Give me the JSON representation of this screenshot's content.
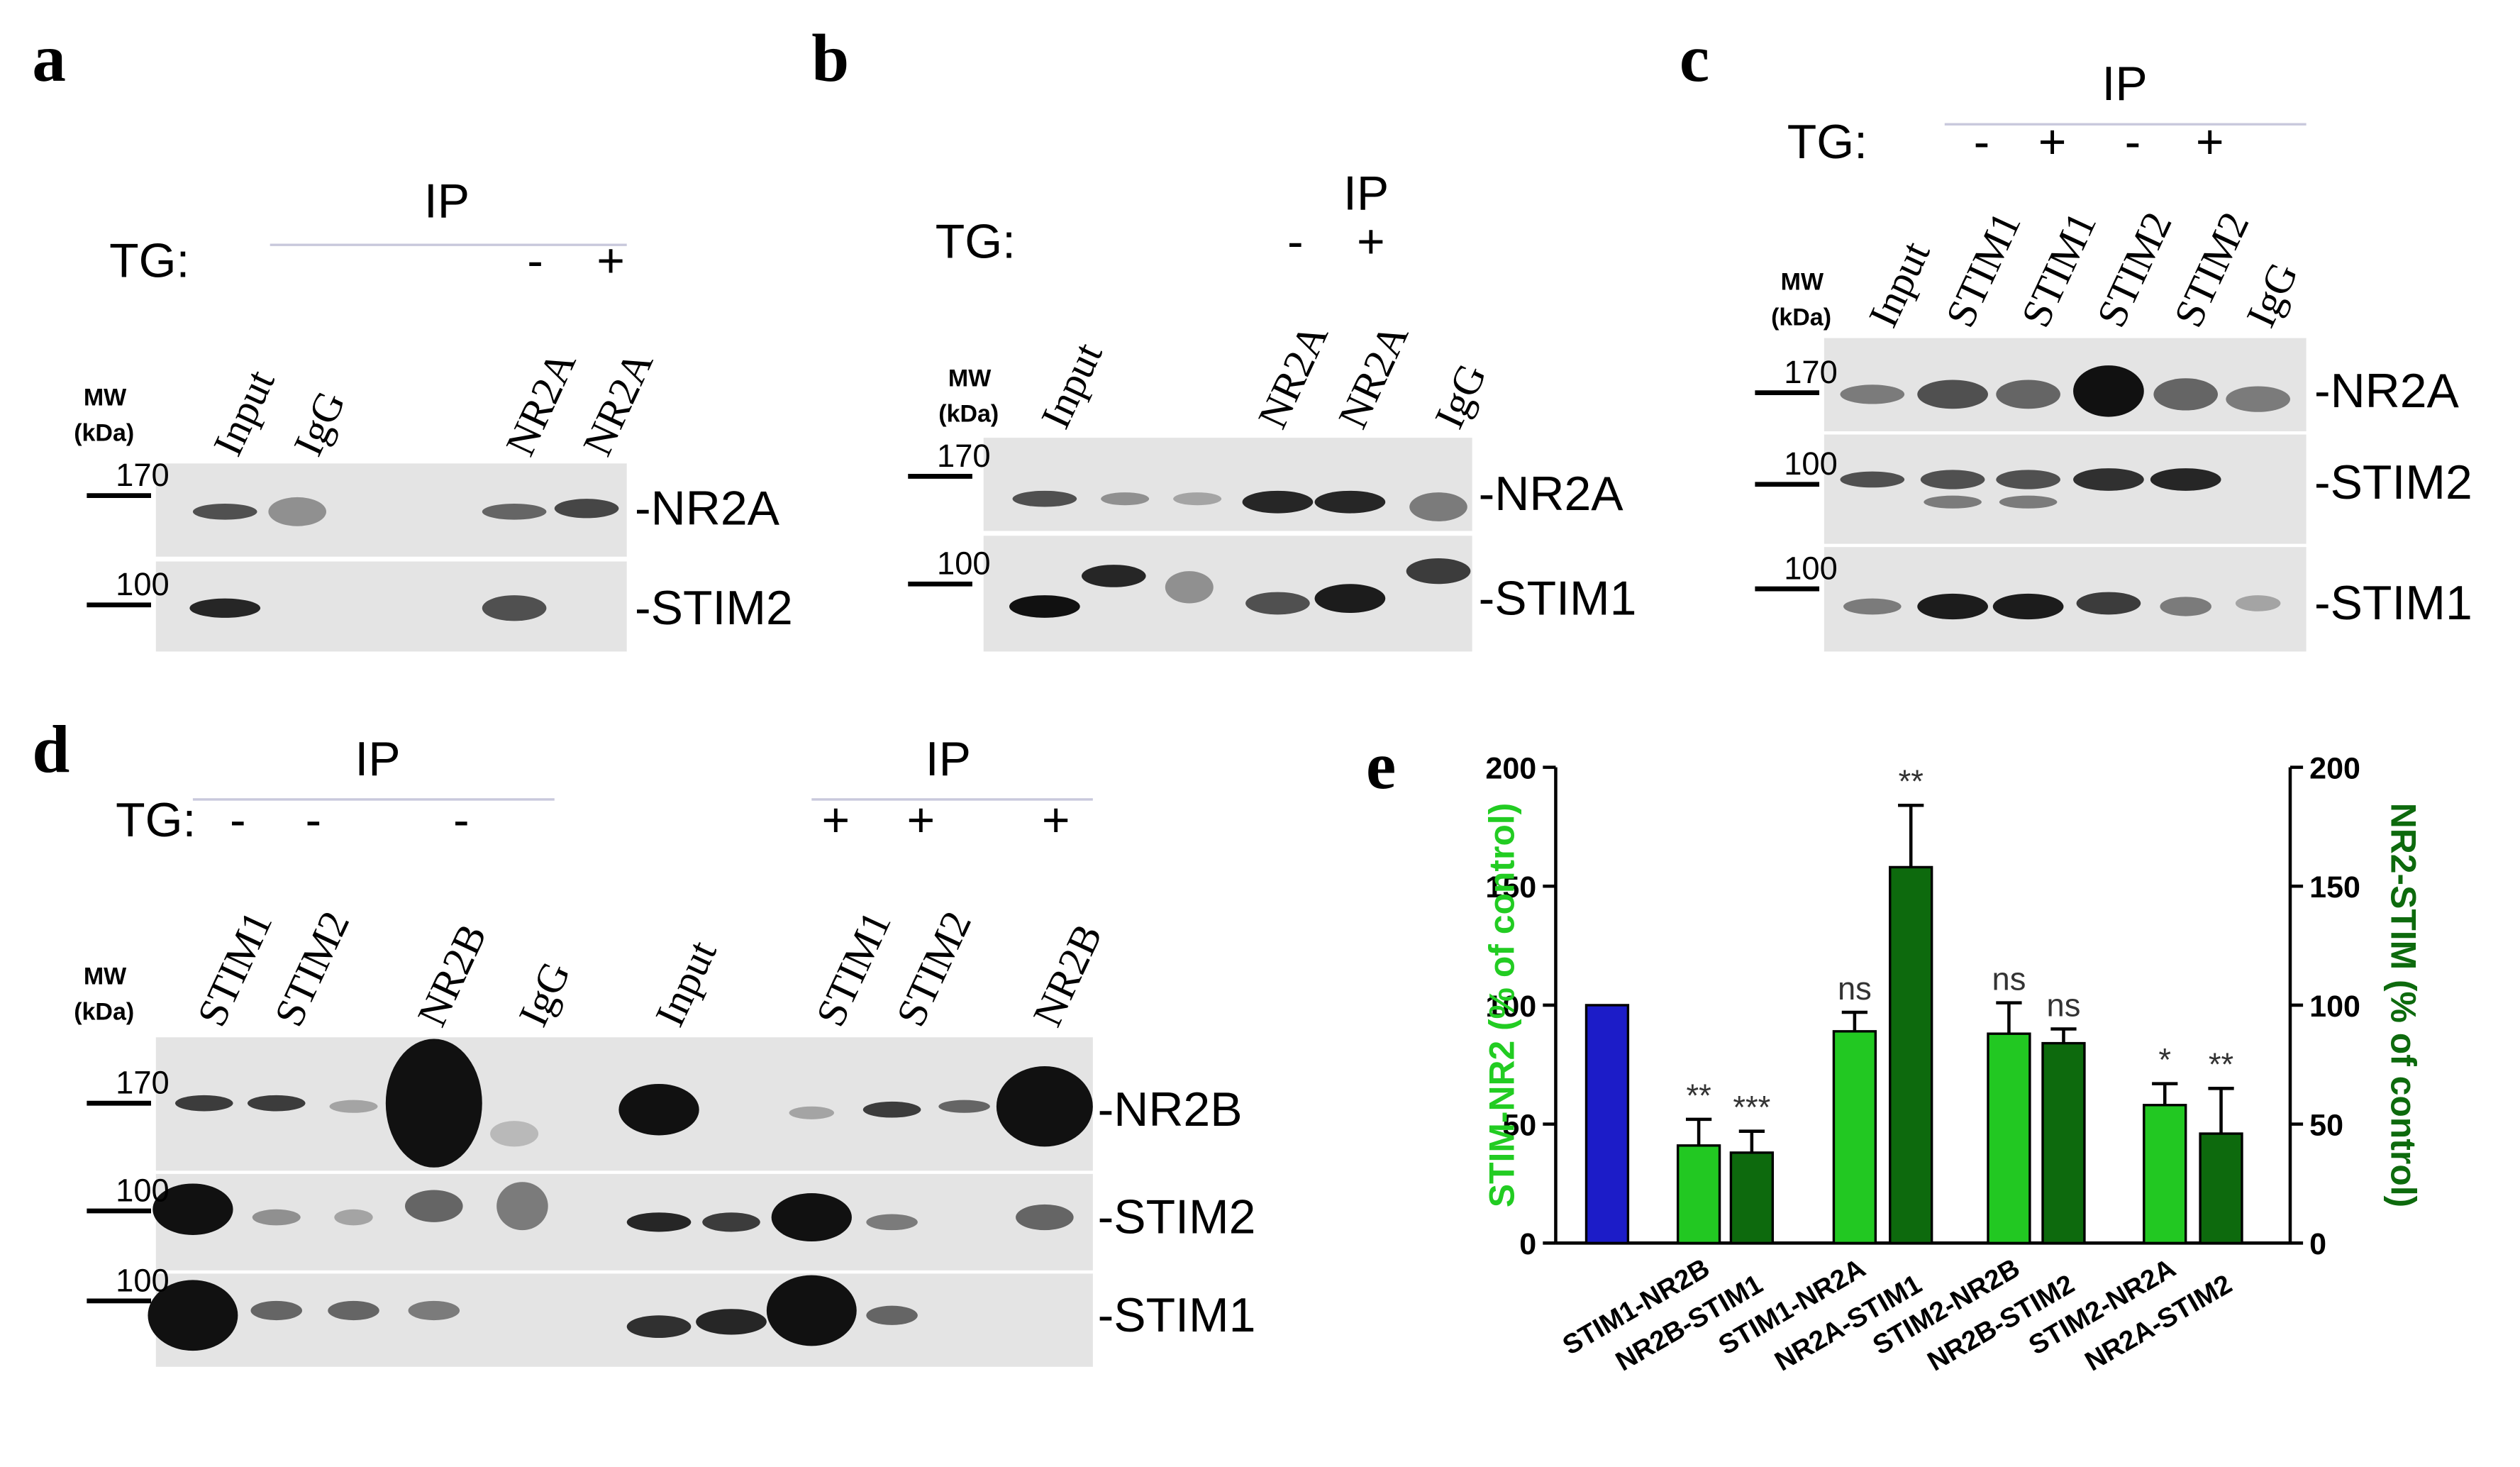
{
  "panels": [
    {
      "letter": "a",
      "ip_labels": [
        "IP"
      ],
      "tg": "TG:",
      "tg_signs": [
        "-",
        "+"
      ],
      "mw": "MW",
      "mw_unit": "(kDa)",
      "lanes": [
        "Input",
        "IgG",
        "NR2A",
        "NR2A"
      ],
      "markers": [
        "170",
        "100"
      ],
      "bands": [
        "-NR2A",
        "-STIM2"
      ]
    },
    {
      "letter": "b",
      "ip_labels": [
        "IP"
      ],
      "tg": "TG:",
      "tg_signs": [
        "-",
        "+"
      ],
      "mw": "MW",
      "mw_unit": "(kDa)",
      "lanes": [
        "Input",
        "NR2A",
        "NR2A",
        "IgG"
      ],
      "markers": [
        "170",
        "100"
      ],
      "bands": [
        "-NR2A",
        "-STIM1"
      ]
    },
    {
      "letter": "c",
      "ip_labels": [
        "IP"
      ],
      "tg": "TG:",
      "tg_signs": [
        "-",
        "+",
        "-",
        "+"
      ],
      "mw": "MW",
      "mw_unit": "(kDa)",
      "lanes": [
        "Input",
        "STIM1",
        "STIM1",
        "STIM2",
        "STIM2",
        "IgG"
      ],
      "markers": [
        "170",
        "100",
        "100"
      ],
      "bands": [
        "-NR2A",
        "-STIM2",
        "-STIM1"
      ]
    },
    {
      "letter": "d",
      "ip_labels": [
        "IP",
        "IP"
      ],
      "tg": "TG:",
      "tg_signs": [
        "-",
        "-",
        "-",
        "+",
        "+",
        "+"
      ],
      "mw": "MW",
      "mw_unit": "(kDa)",
      "lanes": [
        "STIM1",
        "STIM2",
        "NR2B",
        "IgG",
        "Input",
        "STIM1",
        "STIM2",
        "NR2B"
      ],
      "markers": [
        "170",
        "100",
        "100"
      ],
      "bands": [
        "-NR2B",
        "-STIM2",
        "-STIM1"
      ]
    }
  ],
  "chart_data": {
    "type": "bar",
    "panel_label": "e",
    "categories": [
      null,
      "STIM1-NR2B",
      "NR2B-STIM1",
      "STIM1-NR2A",
      "NR2A-STIM1",
      "STIM2-NR2B",
      "NR2B-STIM2",
      "STIM2-NR2A",
      "NR2A-STIM2"
    ],
    "values": [
      100,
      41,
      38,
      89,
      158,
      88,
      84,
      58,
      46
    ],
    "errors": [
      null,
      11,
      9,
      8,
      26,
      13,
      6,
      9,
      19
    ],
    "colors": [
      "#1c1cc8",
      "#22c822",
      "#0d6a0d",
      "#22c822",
      "#0d6a0d",
      "#22c822",
      "#0d6a0d",
      "#22c822",
      "#0d6a0d"
    ],
    "annotations": [
      null,
      "**",
      "***",
      "ns",
      "**",
      "ns",
      "ns",
      "*",
      "**"
    ],
    "ylabel": "STIM-NR2 (% of control)",
    "ylabel_color": "#22cc22",
    "y2label": "NR2-STIM (% of control)",
    "y2label_color": "#0d6a0d",
    "ylim": [
      0,
      200
    ],
    "yticks": [
      0,
      50,
      100,
      150,
      200
    ],
    "y2lim": [
      0,
      200
    ],
    "y2ticks": [
      0,
      50,
      100,
      150,
      200
    ]
  }
}
